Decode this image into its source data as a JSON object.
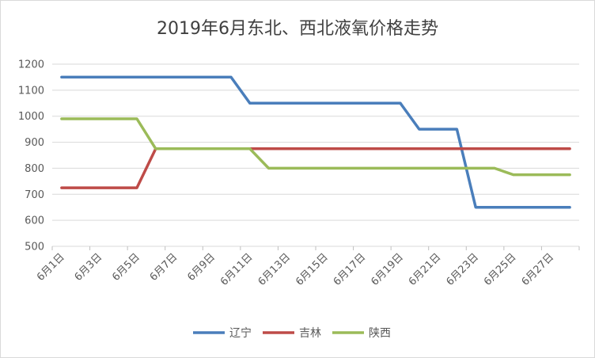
{
  "chart_data": {
    "type": "line",
    "title": "2019年6月东北、西北液氧价格走势",
    "xlabel": "",
    "ylabel": "",
    "ylim": [
      500,
      1200
    ],
    "yticks": [
      500,
      600,
      700,
      800,
      900,
      1000,
      1100,
      1200
    ],
    "grid": true,
    "legend_position": "bottom",
    "x": [
      "6月1日",
      "6月2日",
      "6月3日",
      "6月4日",
      "6月5日",
      "6月6日",
      "6月7日",
      "6月8日",
      "6月9日",
      "6月10日",
      "6月11日",
      "6月12日",
      "6月13日",
      "6月14日",
      "6月15日",
      "6月16日",
      "6月17日",
      "6月18日",
      "6月19日",
      "6月20日",
      "6月21日",
      "6月22日",
      "6月23日",
      "6月24日",
      "6月25日",
      "6月26日",
      "6月27日",
      "6月28日"
    ],
    "x_tick_labels": [
      "6月1日",
      "6月3日",
      "6月5日",
      "6月7日",
      "6月9日",
      "6月11日",
      "6月13日",
      "6月15日",
      "6月17日",
      "6月19日",
      "6月21日",
      "6月23日",
      "6月25日",
      "6月27日"
    ],
    "series": [
      {
        "name": "辽宁",
        "color": "#4a7ebb",
        "values": [
          1150,
          1150,
          1150,
          1150,
          1150,
          1150,
          1150,
          1150,
          1150,
          1150,
          1050,
          1050,
          1050,
          1050,
          1050,
          1050,
          1050,
          1050,
          1050,
          950,
          950,
          950,
          650,
          650,
          650,
          650,
          650,
          650
        ]
      },
      {
        "name": "吉林",
        "color": "#be4b48",
        "values": [
          725,
          725,
          725,
          725,
          725,
          875,
          875,
          875,
          875,
          875,
          875,
          875,
          875,
          875,
          875,
          875,
          875,
          875,
          875,
          875,
          875,
          875,
          875,
          875,
          875,
          875,
          875,
          875
        ]
      },
      {
        "name": "陕西",
        "color": "#9bbb59",
        "values": [
          990,
          990,
          990,
          990,
          990,
          875,
          875,
          875,
          875,
          875,
          875,
          800,
          800,
          800,
          800,
          800,
          800,
          800,
          800,
          800,
          800,
          800,
          800,
          800,
          775,
          775,
          775,
          775
        ]
      }
    ]
  }
}
